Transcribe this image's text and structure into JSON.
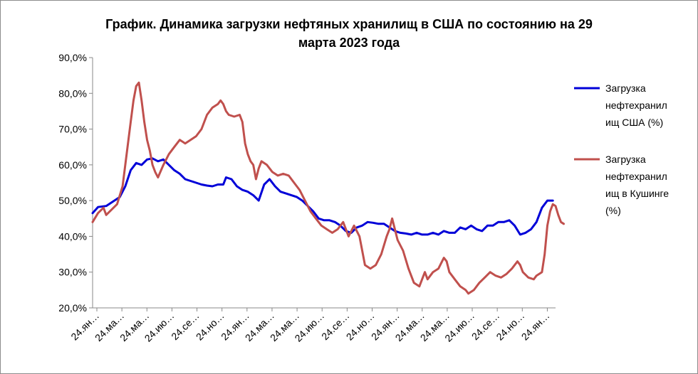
{
  "chart_data": {
    "type": "line",
    "title": "График. Динамика загрузки нефтяных хранилищ в США по состоянию на 29 марта 2023 года",
    "title_lines": [
      "График. Динамика загрузки нефтяных хранилищ в США по состоянию на 29",
      "марта 2023 года"
    ],
    "xlabel": "",
    "ylabel": "",
    "ylim": [
      20,
      90
    ],
    "ytick_labels": [
      "20,0%",
      "30,0%",
      "40,0%",
      "50,0%",
      "60,0%",
      "70,0%",
      "80,0%",
      "90,0%"
    ],
    "yticks": [
      20,
      30,
      40,
      50,
      60,
      70,
      80,
      90
    ],
    "xtick_labels": [
      "24.ян…",
      "24.ма…",
      "24.ма…",
      "24.ию…",
      "24.се…",
      "24.но…",
      "24.ян…",
      "24.ма…",
      "24.ма…",
      "24.ию…",
      "24.се…",
      "24.но…",
      "24.ян…",
      "24.ма…",
      "24.ма…",
      "24.ию…",
      "24.се…",
      "24.но…",
      "24.ян…"
    ],
    "grid": false,
    "legend_position": "right",
    "x_points": 170,
    "series": [
      {
        "name": "Загрузка нефтехранилищ США (%)",
        "legend_lines": [
          "Загрузка",
          "нефтехранил",
          "ищ США (%)"
        ],
        "color": "#0000d8",
        "points": [
          [
            0,
            46.5
          ],
          [
            2,
            48.2
          ],
          [
            5,
            48.5
          ],
          [
            8,
            50
          ],
          [
            10,
            51
          ],
          [
            12,
            54
          ],
          [
            14,
            58.5
          ],
          [
            16,
            60.5
          ],
          [
            18,
            60
          ],
          [
            20,
            61.5
          ],
          [
            22,
            61.8
          ],
          [
            24,
            61
          ],
          [
            26,
            61.5
          ],
          [
            28,
            60
          ],
          [
            30,
            58.5
          ],
          [
            32,
            57.5
          ],
          [
            34,
            56
          ],
          [
            36,
            55.5
          ],
          [
            38,
            55
          ],
          [
            40,
            54.5
          ],
          [
            42,
            54.2
          ],
          [
            44,
            54
          ],
          [
            46,
            54.5
          ],
          [
            48,
            54.5
          ],
          [
            49,
            56.5
          ],
          [
            51,
            56
          ],
          [
            53,
            54
          ],
          [
            55,
            53
          ],
          [
            57,
            52.5
          ],
          [
            59,
            51.5
          ],
          [
            61,
            50
          ],
          [
            63,
            54.5
          ],
          [
            65,
            56
          ],
          [
            67,
            54
          ],
          [
            69,
            52.5
          ],
          [
            71,
            52
          ],
          [
            73,
            51.5
          ],
          [
            75,
            51
          ],
          [
            77,
            50
          ],
          [
            79,
            48.5
          ],
          [
            81,
            47
          ],
          [
            83,
            45
          ],
          [
            85,
            44.5
          ],
          [
            87,
            44.5
          ],
          [
            89,
            44
          ],
          [
            91,
            43
          ],
          [
            93,
            41.5
          ],
          [
            95,
            41
          ],
          [
            97,
            42.5
          ],
          [
            99,
            43
          ],
          [
            101,
            44
          ],
          [
            103,
            43.8
          ],
          [
            105,
            43.5
          ],
          [
            107,
            43.5
          ],
          [
            109,
            42.5
          ],
          [
            111,
            41.5
          ],
          [
            113,
            41
          ],
          [
            115,
            40.8
          ],
          [
            117,
            40.5
          ],
          [
            119,
            41
          ],
          [
            121,
            40.5
          ],
          [
            123,
            40.5
          ],
          [
            125,
            41
          ],
          [
            127,
            40.5
          ],
          [
            129,
            41.5
          ],
          [
            131,
            41
          ],
          [
            133,
            41
          ],
          [
            135,
            42.5
          ],
          [
            137,
            42
          ],
          [
            139,
            43
          ],
          [
            141,
            42
          ],
          [
            143,
            41.5
          ],
          [
            145,
            43
          ],
          [
            147,
            43
          ],
          [
            149,
            44
          ],
          [
            151,
            44
          ],
          [
            153,
            44.5
          ],
          [
            155,
            43
          ],
          [
            157,
            40.5
          ],
          [
            159,
            41
          ],
          [
            161,
            42
          ],
          [
            163,
            44
          ],
          [
            165,
            48
          ],
          [
            167,
            50
          ],
          [
            169,
            50
          ]
        ]
      },
      {
        "name": "Загрузка нефтехранилищ в Кушинге (%)",
        "legend_lines": [
          "Загрузка",
          "нефтехранил",
          "ищ в Кушинге",
          "(%)"
        ],
        "color": "#c0504d",
        "points": [
          [
            0,
            44
          ],
          [
            2,
            46.5
          ],
          [
            4,
            48
          ],
          [
            5,
            46
          ],
          [
            7,
            47.5
          ],
          [
            9,
            49
          ],
          [
            11,
            54
          ],
          [
            13,
            66
          ],
          [
            14,
            72
          ],
          [
            15,
            78
          ],
          [
            16,
            82
          ],
          [
            17,
            83
          ],
          [
            18,
            78
          ],
          [
            19,
            72
          ],
          [
            20,
            67
          ],
          [
            21,
            64
          ],
          [
            22,
            60
          ],
          [
            23,
            58
          ],
          [
            24,
            56.5
          ],
          [
            26,
            60
          ],
          [
            28,
            63
          ],
          [
            30,
            65
          ],
          [
            32,
            67
          ],
          [
            34,
            66
          ],
          [
            36,
            67
          ],
          [
            38,
            68
          ],
          [
            40,
            70
          ],
          [
            42,
            74
          ],
          [
            44,
            76
          ],
          [
            46,
            77
          ],
          [
            47,
            78
          ],
          [
            48,
            77
          ],
          [
            49,
            75
          ],
          [
            50,
            74
          ],
          [
            52,
            73.5
          ],
          [
            54,
            74
          ],
          [
            55,
            72
          ],
          [
            56,
            66
          ],
          [
            57,
            63
          ],
          [
            58,
            61
          ],
          [
            59,
            60
          ],
          [
            60,
            56
          ],
          [
            61,
            59
          ],
          [
            62,
            61
          ],
          [
            64,
            60
          ],
          [
            66,
            58
          ],
          [
            68,
            57
          ],
          [
            70,
            57.5
          ],
          [
            72,
            57
          ],
          [
            74,
            55
          ],
          [
            76,
            53
          ],
          [
            78,
            50
          ],
          [
            80,
            47
          ],
          [
            82,
            45
          ],
          [
            84,
            43
          ],
          [
            86,
            42
          ],
          [
            88,
            41
          ],
          [
            90,
            42
          ],
          [
            92,
            44
          ],
          [
            94,
            40
          ],
          [
            96,
            43
          ],
          [
            98,
            40
          ],
          [
            100,
            32
          ],
          [
            102,
            31
          ],
          [
            104,
            32
          ],
          [
            106,
            35
          ],
          [
            108,
            40
          ],
          [
            109,
            42
          ],
          [
            110,
            45
          ],
          [
            111,
            42
          ],
          [
            112,
            39
          ],
          [
            114,
            36
          ],
          [
            116,
            31
          ],
          [
            118,
            27
          ],
          [
            120,
            26
          ],
          [
            122,
            30
          ],
          [
            123,
            28
          ],
          [
            125,
            30
          ],
          [
            127,
            31
          ],
          [
            129,
            34
          ],
          [
            130,
            33
          ],
          [
            131,
            30
          ],
          [
            133,
            28
          ],
          [
            135,
            26
          ],
          [
            137,
            25
          ],
          [
            138,
            24
          ],
          [
            140,
            25
          ],
          [
            142,
            27
          ],
          [
            144,
            28.5
          ],
          [
            146,
            30
          ],
          [
            148,
            29
          ],
          [
            150,
            28.5
          ],
          [
            152,
            29.5
          ],
          [
            154,
            31
          ],
          [
            156,
            33
          ],
          [
            157,
            32
          ],
          [
            158,
            30
          ],
          [
            160,
            28.5
          ],
          [
            162,
            28
          ],
          [
            163,
            29
          ],
          [
            165,
            30
          ],
          [
            166,
            35
          ],
          [
            167,
            43
          ],
          [
            168,
            47
          ],
          [
            169,
            49
          ],
          [
            170,
            48.5
          ],
          [
            171,
            46
          ],
          [
            172,
            44
          ],
          [
            173,
            43.5
          ]
        ]
      }
    ]
  }
}
